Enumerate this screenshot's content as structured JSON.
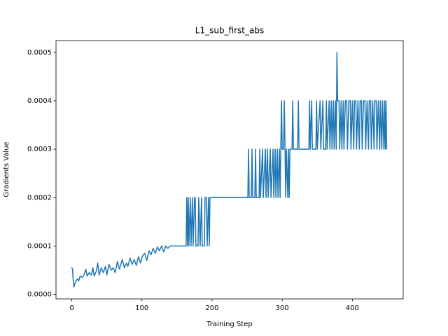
{
  "chart_data": {
    "type": "line",
    "title": "L1_sub_first_abs",
    "x_label": "Training Step",
    "y_label": "Gradients Value",
    "color": "#1f77b4",
    "xlim": [
      -22.5,
      472.5
    ],
    "xticks": [
      0,
      100,
      200,
      300,
      400
    ],
    "ylim": [
      -9.3e-06,
      0.0005243
    ],
    "yticks": [
      {
        "value": 0,
        "label": "0.0000"
      },
      0.0001,
      0.0002,
      0.0003,
      0.0004,
      0.0005
    ],
    "x": [
      0,
      1,
      2,
      3,
      5,
      8,
      10,
      12,
      15,
      18,
      20,
      22,
      25,
      28,
      30,
      32,
      35,
      37,
      39,
      42,
      45,
      48,
      50,
      53,
      56,
      59,
      62,
      65,
      68,
      70,
      72,
      75,
      78,
      80,
      83,
      86,
      89,
      92,
      95,
      98,
      101,
      104,
      107,
      110,
      113,
      116,
      119,
      122,
      125,
      128,
      131,
      134,
      137,
      140,
      163,
      164,
      165,
      166,
      167,
      169,
      170,
      172,
      173,
      175,
      176,
      177,
      180,
      181,
      183,
      185,
      186,
      189,
      190,
      192,
      193,
      195,
      196,
      197,
      251,
      252,
      253,
      256,
      257,
      258,
      261,
      262,
      263,
      267,
      268,
      269,
      272,
      273,
      276,
      277,
      279,
      280,
      283,
      284,
      287,
      288,
      290,
      291,
      293,
      294,
      296,
      297,
      298,
      299,
      300,
      302,
      303,
      304,
      305,
      306,
      308,
      309,
      310,
      311,
      314,
      315,
      316,
      322,
      323,
      324,
      338,
      339,
      340,
      342,
      343,
      348,
      349,
      350,
      354,
      355,
      358,
      359,
      362,
      363,
      364,
      367,
      368,
      370,
      371,
      373,
      374,
      376,
      377,
      378,
      379,
      381,
      382,
      384,
      385,
      387,
      388,
      390,
      392,
      393,
      395,
      397,
      398,
      400,
      402,
      403,
      405,
      406,
      408,
      410,
      411,
      413,
      414,
      416,
      418,
      419,
      421,
      423,
      424,
      426,
      427,
      429,
      431,
      432,
      434,
      435,
      437,
      439,
      440,
      442,
      443,
      445,
      446,
      447,
      448,
      449
    ],
    "values": [
      5.6e-05,
      5.2e-05,
      3e-05,
      1.5e-05,
      2.5e-05,
      3.2e-05,
      2.8e-05,
      3.8e-05,
      3.5e-05,
      4.2e-05,
      5.2e-05,
      3.8e-05,
      4.5e-05,
      4e-05,
      5.5e-05,
      3.8e-05,
      4.8e-05,
      6.5e-05,
      4e-05,
      5.5e-05,
      4.5e-05,
      5.8e-05,
      4e-05,
      6.2e-05,
      5e-05,
      5.5e-05,
      4.5e-05,
      6.8e-05,
      5.2e-05,
      6.2e-05,
      7.2e-05,
      5.5e-05,
      6.5e-05,
      5.8e-05,
      7.5e-05,
      6.2e-05,
      7.2e-05,
      6e-05,
      7.8e-05,
      6.5e-05,
      8e-05,
      8.5e-05,
      7e-05,
      9e-05,
      8.2e-05,
      9.5e-05,
      8.5e-05,
      9.8e-05,
      9e-05,
      0.0001,
      8.8e-05,
      0.0001,
      9.5e-05,
      0.0001,
      0.0001,
      0.0002,
      0.0001,
      0.0002,
      0.0001,
      0.0002,
      0.0001,
      0.0002,
      0.0001,
      0.0002,
      0.0002,
      0.0001,
      0.0001,
      0.0002,
      0.0001,
      0.0002,
      0.0001,
      0.0001,
      0.0002,
      0.0002,
      0.0001,
      0.0002,
      0.0001,
      0.0002,
      0.0002,
      0.0003,
      0.0002,
      0.0002,
      0.0003,
      0.0002,
      0.0002,
      0.0003,
      0.0002,
      0.0002,
      0.0003,
      0.0002,
      0.0003,
      0.0002,
      0.0003,
      0.0002,
      0.0003,
      0.0002,
      0.0003,
      0.0002,
      0.0003,
      0.0002,
      0.0003,
      0.0002,
      0.0003,
      0.0002,
      0.0003,
      0.0002,
      0.0003,
      0.0004,
      0.0003,
      0.0003,
      0.0004,
      0.0003,
      0.0002,
      0.0003,
      0.0002,
      0.0003,
      0.0002,
      0.0003,
      0.0003,
      0.0004,
      0.0003,
      0.0003,
      0.0004,
      0.0003,
      0.0003,
      0.0004,
      0.0003,
      0.0004,
      0.0003,
      0.0003,
      0.0004,
      0.0003,
      0.0004,
      0.0003,
      0.0004,
      0.0003,
      0.0003,
      0.0004,
      0.0003,
      0.0004,
      0.0003,
      0.0004,
      0.0003,
      0.0004,
      0.0003,
      0.0004,
      0.0003,
      0.0005,
      0.0004,
      0.0004,
      0.0003,
      0.0004,
      0.0003,
      0.0004,
      0.0003,
      0.0004,
      0.0004,
      0.0003,
      0.0004,
      0.0004,
      0.0003,
      0.0004,
      0.0003,
      0.0004,
      0.0004,
      0.0003,
      0.0004,
      0.0003,
      0.0004,
      0.0004,
      0.0003,
      0.0004,
      0.0004,
      0.0003,
      0.0004,
      0.0003,
      0.0004,
      0.0004,
      0.0003,
      0.0004,
      0.0003,
      0.0004,
      0.0004,
      0.0003,
      0.0004,
      0.0003,
      0.0004,
      0.0003,
      0.0004,
      0.0003,
      0.0004,
      0.0003,
      0.0004,
      0.0003
    ]
  }
}
